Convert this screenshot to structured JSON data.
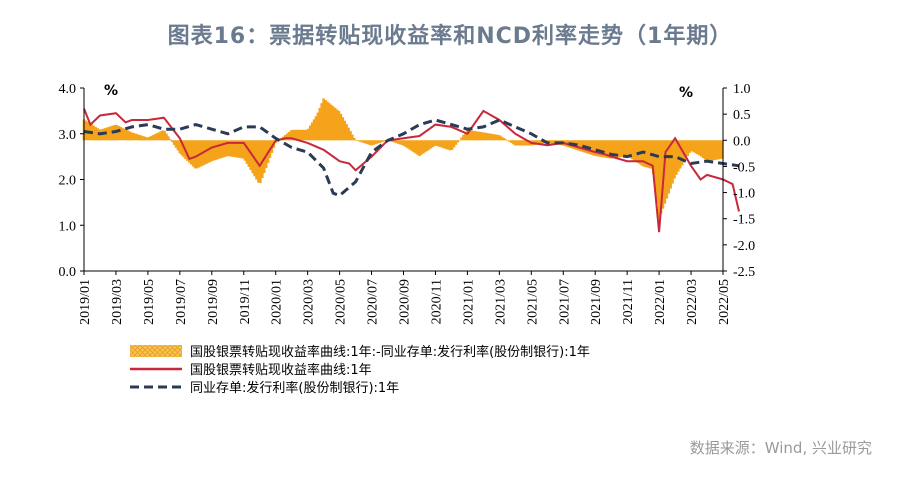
{
  "title": "图表16：票据转贴现收益率和NCD利率走势（1年期）",
  "source": "数据来源：Wind, 兴业研究",
  "chart_data": {
    "type": "line",
    "title": "图表16：票据转贴现收益率和NCD利率走势（1年期）",
    "left_unit": "%",
    "right_unit": "%",
    "x_labels": [
      "2019/01",
      "2019/03",
      "2019/05",
      "2019/07",
      "2019/09",
      "2019/11",
      "2020/01",
      "2020/03",
      "2020/05",
      "2020/07",
      "2020/09",
      "2020/11",
      "2021/01",
      "2021/03",
      "2021/05",
      "2021/07",
      "2021/09",
      "2021/11",
      "2022/01",
      "2022/03",
      "2022/05"
    ],
    "y_left_ticks": [
      "0.0",
      "1.0",
      "2.0",
      "3.0",
      "4.0"
    ],
    "y_right_ticks": [
      "-2.5",
      "-2.0",
      "-1.5",
      "-1.0",
      "-0.5",
      "0.0",
      "0.5",
      "1.0"
    ],
    "y_left_range": [
      0,
      4
    ],
    "y_right_range": [
      -2.5,
      1
    ],
    "legend": [
      {
        "name": "国股银票转贴现收益率曲线:1年:-同业存单:发行利率(股份制银行):1年",
        "style": "bar",
        "color": "#f5a31a"
      },
      {
        "name": "国股银票转贴现收益率曲线:1年",
        "style": "line",
        "color": "#c8283c"
      },
      {
        "name": "同业存单:发行利率(股份制银行):1年",
        "style": "dashed",
        "color": "#2b3a55"
      }
    ],
    "series": [
      {
        "name": "国股银票转贴现收益率曲线:1年",
        "x": [
          0,
          0.2,
          0.5,
          1,
          1.3,
          1.5,
          2,
          2.5,
          3,
          3.3,
          3.5,
          4,
          4.5,
          5,
          5.5,
          6,
          6.3,
          6.5,
          7,
          7.5,
          8,
          8.3,
          8.5,
          9,
          9.5,
          10,
          10.5,
          11,
          11.5,
          12,
          12.3,
          12.5,
          13,
          13.5,
          14,
          14.5,
          15,
          15.5,
          16,
          16.3,
          16.5,
          17,
          17.5,
          17.8,
          18,
          18.2,
          18.5,
          19,
          19.3,
          19.5,
          20,
          20.3,
          20.5
        ],
        "values": [
          3.55,
          3.2,
          3.4,
          3.45,
          3.25,
          3.3,
          3.3,
          3.35,
          2.9,
          2.45,
          2.5,
          2.7,
          2.8,
          2.8,
          2.3,
          2.85,
          2.9,
          2.9,
          2.8,
          2.65,
          2.4,
          2.35,
          2.2,
          2.5,
          2.85,
          2.9,
          2.95,
          3.2,
          3.15,
          3.0,
          3.3,
          3.5,
          3.3,
          3.0,
          2.8,
          2.75,
          2.8,
          2.7,
          2.6,
          2.55,
          2.5,
          2.4,
          2.4,
          2.3,
          0.85,
          2.6,
          2.9,
          2.3,
          2.0,
          2.1,
          2.0,
          1.9,
          1.3
        ]
      },
      {
        "name": "同业存单:发行利率(股份制银行):1年",
        "x": [
          0,
          0.5,
          1,
          1.5,
          2,
          2.5,
          3,
          3.5,
          4,
          4.5,
          5,
          5.5,
          6,
          6.5,
          7,
          7.5,
          7.8,
          8,
          8.5,
          9,
          9.5,
          10,
          10.5,
          11,
          11.5,
          12,
          12.5,
          13,
          13.5,
          14,
          14.5,
          15,
          15.5,
          16,
          16.5,
          17,
          17.5,
          18,
          18.5,
          19,
          19.5,
          20,
          20.5
        ],
        "values": [
          3.05,
          3.0,
          3.05,
          3.15,
          3.2,
          3.1,
          3.1,
          3.2,
          3.1,
          3.0,
          3.15,
          3.15,
          2.9,
          2.7,
          2.6,
          2.25,
          1.7,
          1.65,
          1.95,
          2.6,
          2.85,
          3.0,
          3.2,
          3.3,
          3.2,
          3.1,
          3.15,
          3.3,
          3.15,
          3.0,
          2.8,
          2.8,
          2.75,
          2.65,
          2.55,
          2.5,
          2.6,
          2.5,
          2.5,
          2.35,
          2.4,
          2.35,
          2.3
        ]
      },
      {
        "name": "国股银票转贴现收益率曲线:1年:-同业存单:发行利率(股份制银行):1年",
        "x": [
          0,
          0.5,
          1,
          1.5,
          2,
          2.5,
          3,
          3.5,
          4,
          4.5,
          5,
          5.5,
          6,
          6.5,
          7,
          7.3,
          7.5,
          7.8,
          8,
          8.5,
          9,
          9.5,
          10,
          10.5,
          11,
          11.5,
          12,
          12.5,
          13,
          13.5,
          14,
          14.5,
          15,
          15.5,
          16,
          16.5,
          17,
          17.5,
          17.8,
          18,
          18.5,
          19,
          19.3,
          19.5,
          20,
          20.5
        ],
        "values": [
          0.4,
          0.2,
          0.3,
          0.15,
          0.05,
          0.2,
          -0.25,
          -0.55,
          -0.4,
          -0.3,
          -0.35,
          -0.85,
          -0.05,
          0.2,
          0.2,
          0.5,
          0.8,
          0.65,
          0.55,
          0.0,
          -0.1,
          0.0,
          -0.1,
          -0.3,
          -0.1,
          -0.2,
          0.2,
          0.15,
          0.1,
          -0.1,
          -0.1,
          -0.05,
          -0.1,
          -0.2,
          -0.3,
          -0.35,
          -0.3,
          -0.5,
          -0.55,
          -1.5,
          -0.7,
          -0.2,
          -0.3,
          -0.4,
          -0.35,
          -0.5
        ]
      }
    ]
  }
}
